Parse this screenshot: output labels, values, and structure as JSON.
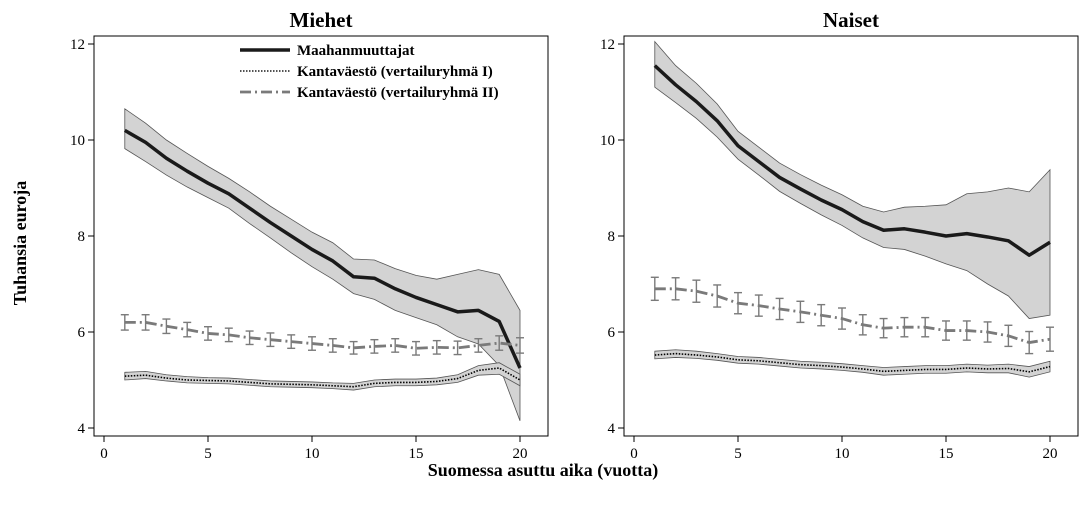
{
  "figure": {
    "ylabel": "Tuhansia euroja",
    "xlabel": "Suomessa asuttu aika (vuotta)"
  },
  "legend": {
    "placement": "top-center (left panel)",
    "items": [
      {
        "label": "Maahanmuuttajat",
        "style": "solid",
        "color": "#1a1a1a"
      },
      {
        "label": "Kantaväestö (vertailuryhmä I)",
        "style": "dotted",
        "color": "#1a1a1a"
      },
      {
        "label": "Kantaväestö (vertailuryhmä II)",
        "style": "dashdot",
        "color": "#7a7a7a"
      }
    ]
  },
  "colors": {
    "band_fill": "#d3d3d3",
    "band_edge": "#555555",
    "dashdot": "#7a7a7a",
    "solid": "#1a1a1a"
  },
  "chart_data": [
    {
      "type": "line",
      "title": "Miehet",
      "xlim": [
        0,
        20
      ],
      "ylim": [
        4,
        12
      ],
      "xticks": [
        0,
        5,
        10,
        15,
        20
      ],
      "yticks": [
        4,
        6,
        8,
        10,
        12
      ],
      "grid": false,
      "x": [
        1,
        2,
        3,
        4,
        5,
        6,
        7,
        8,
        9,
        10,
        11,
        12,
        13,
        14,
        15,
        16,
        17,
        18,
        19,
        20
      ],
      "series": [
        {
          "name": "Maahanmuuttajat",
          "values": [
            10.2,
            9.95,
            9.62,
            9.35,
            9.1,
            8.88,
            8.58,
            8.28,
            8.0,
            7.72,
            7.48,
            7.15,
            7.12,
            6.9,
            6.72,
            6.57,
            6.42,
            6.45,
            6.22,
            5.25
          ],
          "lower": [
            9.82,
            9.55,
            9.27,
            9.02,
            8.8,
            8.58,
            8.26,
            7.96,
            7.65,
            7.36,
            7.1,
            6.8,
            6.68,
            6.45,
            6.3,
            6.15,
            5.9,
            5.75,
            5.3,
            4.15
          ],
          "upper": [
            10.65,
            10.35,
            10.0,
            9.72,
            9.45,
            9.2,
            8.92,
            8.62,
            8.35,
            8.08,
            7.86,
            7.52,
            7.5,
            7.32,
            7.18,
            7.1,
            7.2,
            7.3,
            7.2,
            6.45
          ]
        },
        {
          "name": "Kantaväestö (vertailuryhmä I)",
          "values": [
            5.08,
            5.1,
            5.04,
            5.0,
            4.99,
            4.98,
            4.95,
            4.92,
            4.91,
            4.9,
            4.88,
            4.86,
            4.93,
            4.95,
            4.95,
            4.97,
            5.03,
            5.2,
            5.25,
            5.0
          ],
          "lower": [
            5.0,
            5.03,
            4.98,
            4.94,
            4.93,
            4.92,
            4.89,
            4.86,
            4.85,
            4.84,
            4.82,
            4.79,
            4.86,
            4.88,
            4.88,
            4.9,
            4.95,
            5.1,
            5.12,
            4.88
          ],
          "upper": [
            5.16,
            5.18,
            5.11,
            5.07,
            5.05,
            5.04,
            5.01,
            4.98,
            4.97,
            4.96,
            4.94,
            4.93,
            5.0,
            5.02,
            5.02,
            5.04,
            5.11,
            5.3,
            5.36,
            5.12
          ]
        },
        {
          "name": "Kantaväestö (vertailuryhmä II)",
          "values": [
            6.2,
            6.2,
            6.12,
            6.05,
            5.97,
            5.94,
            5.88,
            5.84,
            5.8,
            5.76,
            5.72,
            5.67,
            5.7,
            5.72,
            5.66,
            5.68,
            5.67,
            5.72,
            5.77,
            5.72
          ],
          "lower": [
            6.04,
            6.04,
            5.97,
            5.9,
            5.83,
            5.8,
            5.74,
            5.7,
            5.66,
            5.62,
            5.58,
            5.54,
            5.56,
            5.58,
            5.52,
            5.54,
            5.53,
            5.58,
            5.62,
            5.56
          ],
          "upper": [
            6.36,
            6.36,
            6.27,
            6.2,
            6.11,
            6.08,
            6.02,
            5.98,
            5.94,
            5.9,
            5.86,
            5.8,
            5.84,
            5.86,
            5.8,
            5.82,
            5.81,
            5.86,
            5.92,
            5.88
          ]
        }
      ]
    },
    {
      "type": "line",
      "title": "Naiset",
      "xlim": [
        0,
        20
      ],
      "ylim": [
        4,
        12
      ],
      "xticks": [
        0,
        5,
        10,
        15,
        20
      ],
      "yticks": [
        4,
        6,
        8,
        10,
        12
      ],
      "grid": false,
      "x": [
        1,
        2,
        3,
        4,
        5,
        6,
        7,
        8,
        9,
        10,
        11,
        12,
        13,
        14,
        15,
        16,
        17,
        18,
        19,
        20
      ],
      "series": [
        {
          "name": "Maahanmuuttajat",
          "values": [
            11.55,
            11.15,
            10.8,
            10.4,
            9.88,
            9.55,
            9.22,
            8.98,
            8.75,
            8.55,
            8.3,
            8.12,
            8.15,
            8.08,
            8.0,
            8.05,
            7.98,
            7.9,
            7.6,
            7.87
          ],
          "lower": [
            11.1,
            10.78,
            10.45,
            10.06,
            9.6,
            9.27,
            8.93,
            8.68,
            8.44,
            8.22,
            7.96,
            7.76,
            7.72,
            7.58,
            7.42,
            7.28,
            7.0,
            6.75,
            6.28,
            6.35
          ],
          "upper": [
            12.05,
            11.55,
            11.18,
            10.75,
            10.18,
            9.85,
            9.52,
            9.28,
            9.06,
            8.86,
            8.62,
            8.5,
            8.6,
            8.62,
            8.65,
            8.88,
            8.92,
            9.0,
            8.92,
            9.38
          ]
        },
        {
          "name": "Kantaväestö (vertailuryhmä I)",
          "values": [
            5.52,
            5.55,
            5.52,
            5.48,
            5.42,
            5.4,
            5.36,
            5.32,
            5.3,
            5.27,
            5.23,
            5.18,
            5.2,
            5.22,
            5.22,
            5.25,
            5.23,
            5.24,
            5.17,
            5.28
          ],
          "lower": [
            5.44,
            5.47,
            5.45,
            5.41,
            5.35,
            5.33,
            5.29,
            5.25,
            5.23,
            5.2,
            5.16,
            5.1,
            5.12,
            5.14,
            5.14,
            5.17,
            5.15,
            5.15,
            5.06,
            5.17
          ],
          "upper": [
            5.6,
            5.63,
            5.6,
            5.55,
            5.49,
            5.47,
            5.43,
            5.39,
            5.37,
            5.34,
            5.3,
            5.26,
            5.28,
            5.3,
            5.3,
            5.33,
            5.31,
            5.33,
            5.28,
            5.39
          ]
        },
        {
          "name": "Kantaväestö (vertailuryhmä II)",
          "values": [
            6.9,
            6.9,
            6.85,
            6.75,
            6.6,
            6.55,
            6.48,
            6.42,
            6.35,
            6.28,
            6.15,
            6.08,
            6.1,
            6.1,
            6.03,
            6.03,
            6.0,
            5.92,
            5.78,
            5.85
          ],
          "lower": [
            6.66,
            6.67,
            6.62,
            6.52,
            6.38,
            6.33,
            6.26,
            6.2,
            6.13,
            6.06,
            5.94,
            5.88,
            5.9,
            5.9,
            5.83,
            5.83,
            5.79,
            5.7,
            5.55,
            5.6
          ],
          "upper": [
            7.14,
            7.13,
            7.08,
            6.98,
            6.82,
            6.77,
            6.7,
            6.64,
            6.57,
            6.5,
            6.36,
            6.28,
            6.3,
            6.3,
            6.23,
            6.23,
            6.21,
            6.14,
            6.01,
            6.1
          ]
        }
      ]
    }
  ]
}
